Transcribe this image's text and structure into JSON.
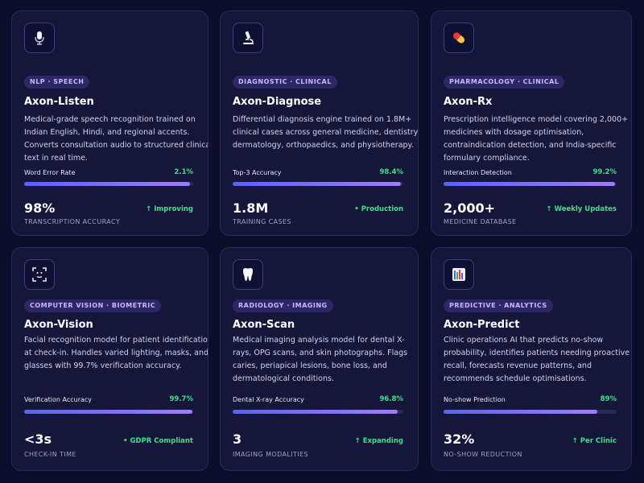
{
  "cards": [
    {
      "tag": "NLP · SPEECH",
      "title": "Axon-Listen",
      "description": "Medical-grade speech recognition trained on Indian English, Hindi, and regional accents. Converts consultation audio to structured clinical text in real time.",
      "metric_label": "Word Error Rate",
      "metric_value": "2.1%",
      "bar_fill_fraction": 0.98,
      "big_value": "98%",
      "big_label": "TRANSCRIPTION ACCURACY",
      "status": "↑ Improving",
      "icon": "microphone-icon"
    },
    {
      "tag": "DIAGNOSTIC · CLINICAL",
      "title": "Axon-Diagnose",
      "description": "Differential diagnosis engine trained on 1.8M+ clinical cases across general medicine, dentistry, dermatology, orthopaedics, and physiotherapy.",
      "metric_label": "Top-3 Accuracy",
      "metric_value": "98.4%",
      "bar_fill_fraction": 0.984,
      "big_value": "1.8M",
      "big_label": "TRAINING CASES",
      "status": "• Production",
      "icon": "microscope-icon"
    },
    {
      "tag": "PHARMACOLOGY · CLINICAL",
      "title": "Axon-Rx",
      "description": "Prescription intelligence model covering 2,000+ medicines with dosage optimisation, contraindication detection, and India-specific formulary compliance.",
      "metric_label": "Interaction Detection",
      "metric_value": "99.2%",
      "bar_fill_fraction": 0.992,
      "big_value": "2,000+",
      "big_label": "MEDICINE DATABASE",
      "status": "↑ Weekly Updates",
      "icon": "pill-icon"
    },
    {
      "tag": "COMPUTER VISION · BIOMETRIC",
      "title": "Axon-Vision",
      "description": "Facial recognition model for patient identification at check-in. Handles varied lighting, masks, and glasses with 99.7% verification accuracy.",
      "metric_label": "Verification Accuracy",
      "metric_value": "99.7%",
      "bar_fill_fraction": 0.997,
      "big_value": "<3s",
      "big_label": "CHECK-IN TIME",
      "status": "• GDPR Compliant",
      "icon": "face-scan-icon"
    },
    {
      "tag": "RADIOLOGY · IMAGING",
      "title": "Axon-Scan",
      "description": "Medical imaging analysis model for dental X-rays, OPG scans, and skin photographs. Flags caries, periapical lesions, bone loss, and dermatological conditions.",
      "metric_label": "Dental X-ray Accuracy",
      "metric_value": "96.8%",
      "bar_fill_fraction": 0.968,
      "big_value": "3",
      "big_label": "IMAGING MODALITIES",
      "status": "↑ Expanding",
      "icon": "tooth-icon"
    },
    {
      "tag": "PREDICTIVE · ANALYTICS",
      "title": "Axon-Predict",
      "description": "Clinic operations AI that predicts no-show probability, identifies patients needing proactive recall, forecasts revenue patterns, and recommends schedule optimisations.",
      "metric_label": "No-show Prediction",
      "metric_value": "89%",
      "bar_fill_fraction": 0.89,
      "big_value": "32%",
      "big_label": "NO-SHOW REDUCTION",
      "status": "↑ Per Clinic",
      "icon": "bar-chart-icon"
    }
  ]
}
